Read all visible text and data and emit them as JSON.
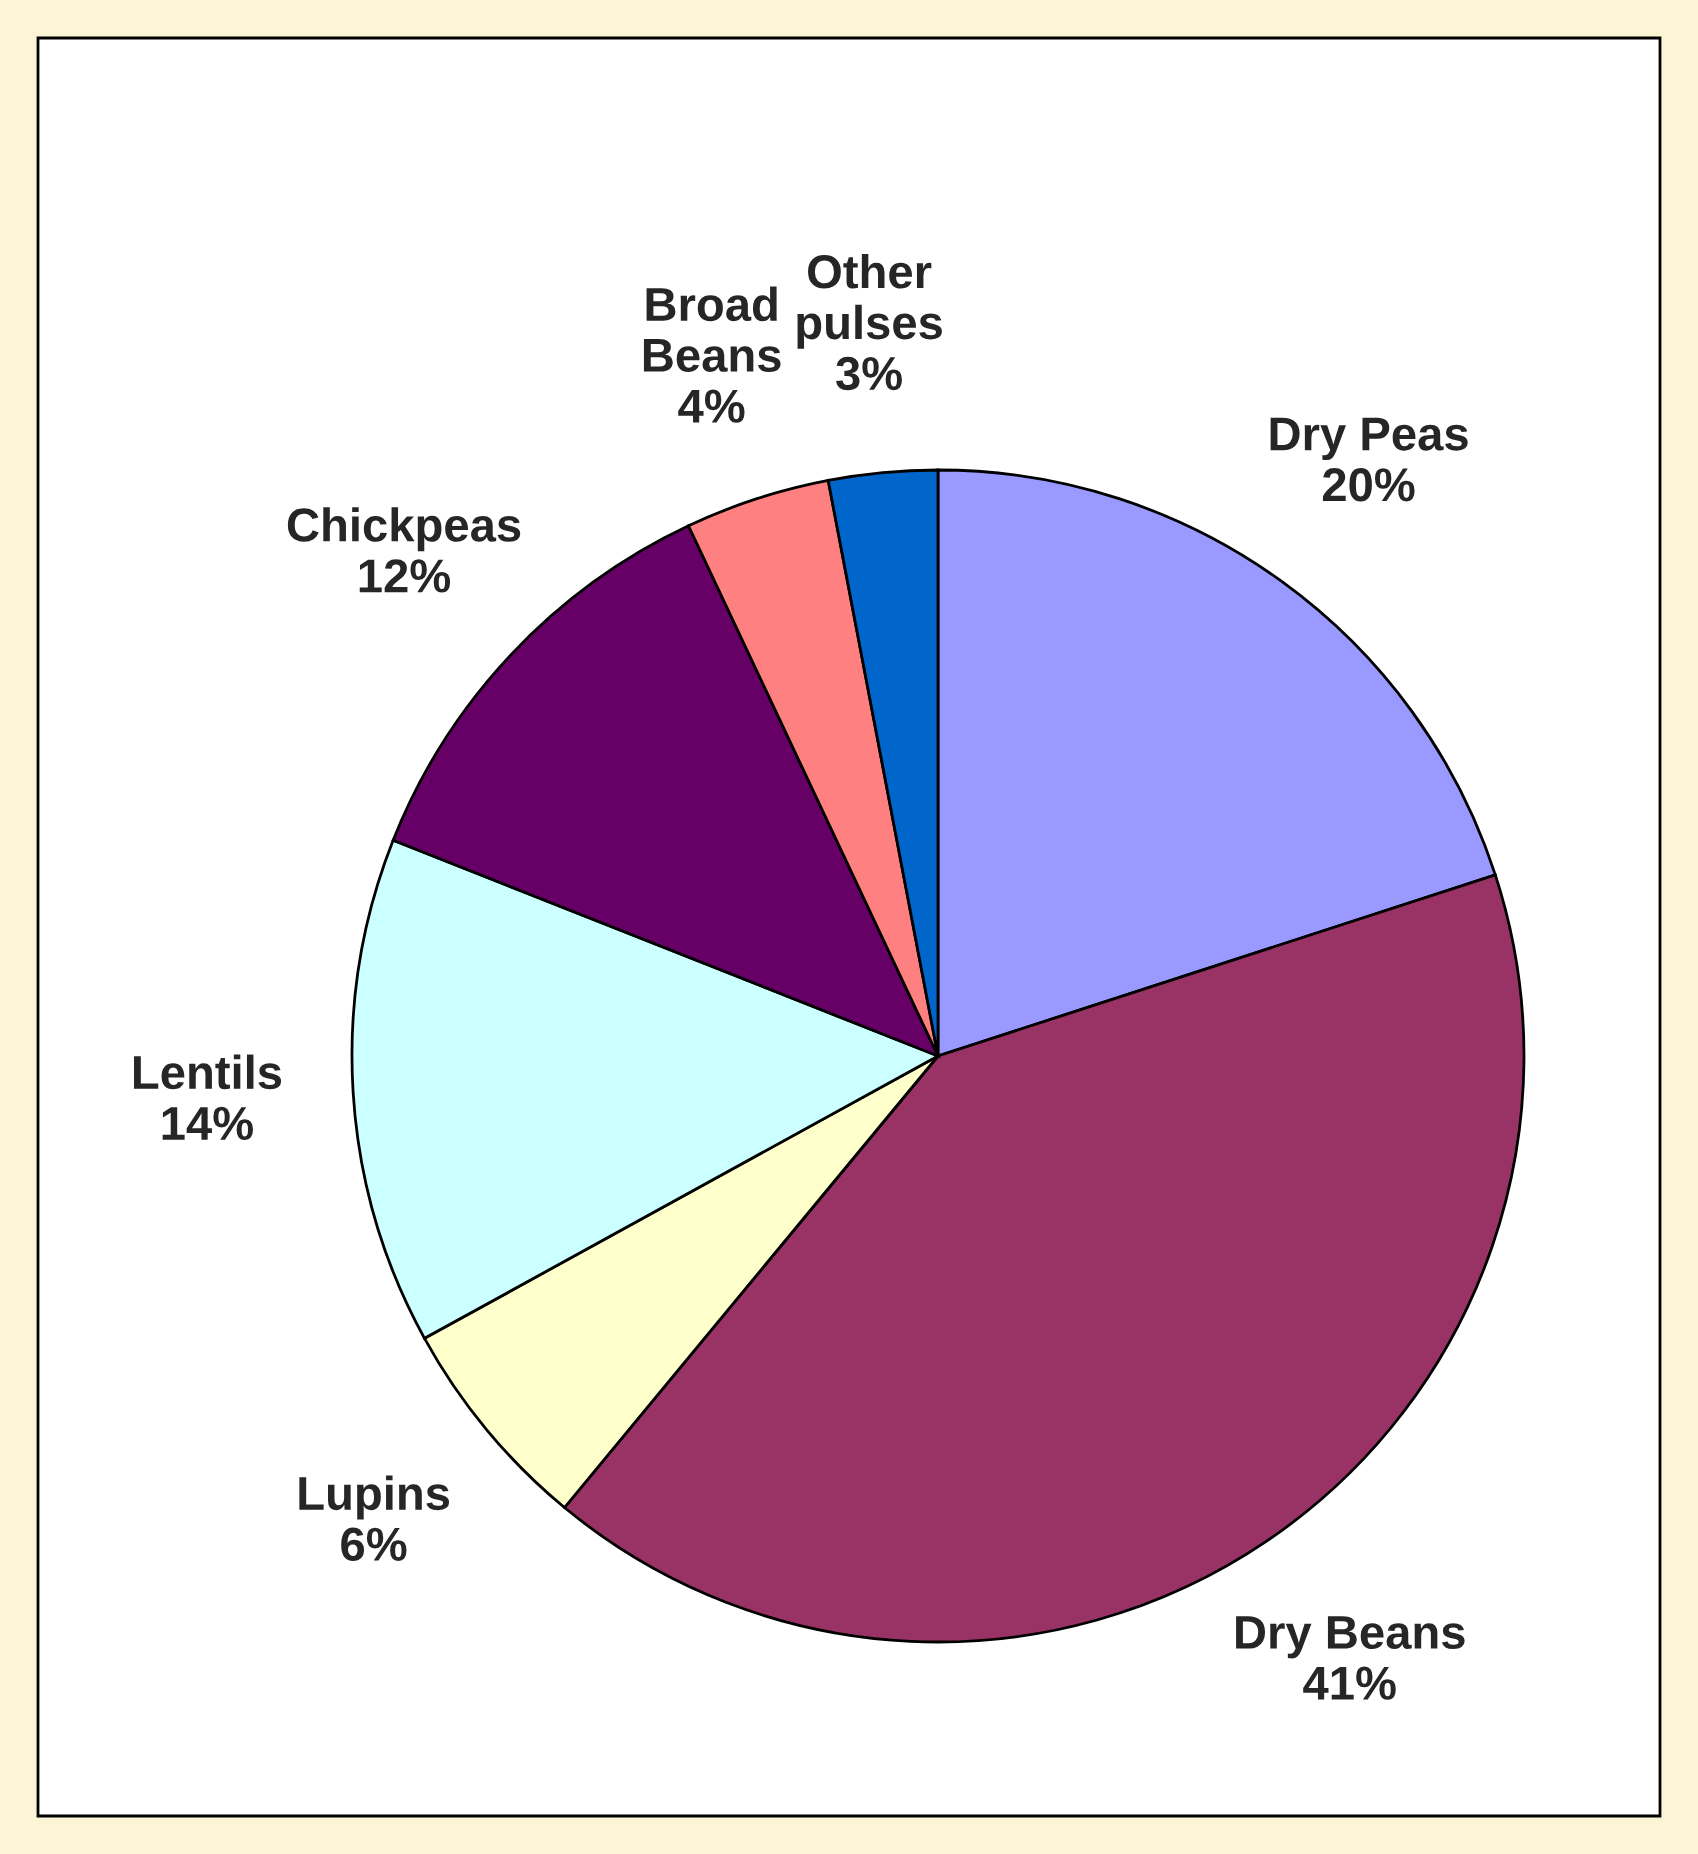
{
  "chart_data": {
    "type": "pie",
    "categories": [
      "Dry Peas",
      "Dry Beans",
      "Lupins",
      "Lentils",
      "Chickpeas",
      "Broad Beans",
      "Other pulses"
    ],
    "values": [
      20,
      41,
      6,
      14,
      12,
      4,
      3
    ],
    "value_labels": [
      "20%",
      "41%",
      "6%",
      "14%",
      "12%",
      "4%",
      "3%"
    ],
    "colors": [
      "#9999ff",
      "#993366",
      "#ffffcc",
      "#ccffff",
      "#660066",
      "#ff8080",
      "#0066cc"
    ],
    "legend": false
  }
}
